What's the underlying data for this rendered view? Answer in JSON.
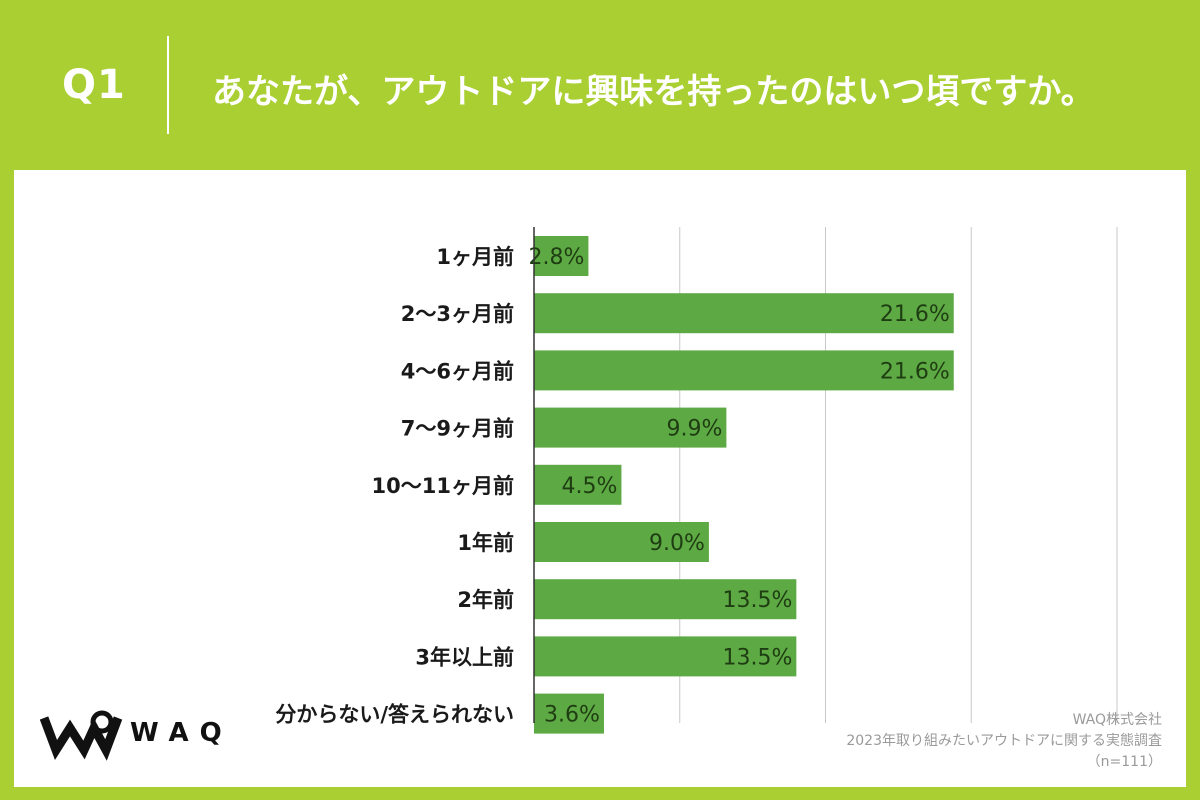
{
  "header": {
    "q_label": "Q1",
    "question": "あなたが、アウトドアに興味を持ったのはいつ頃ですか。"
  },
  "brand": {
    "logo_text": "WAQ"
  },
  "source": {
    "company": "WAQ株式会社",
    "survey": "2023年取り組みたいアウトドアに関する実態調査",
    "sample": "（n=111）"
  },
  "colors": {
    "background": "#a9cf33",
    "bar": "#5da944",
    "gridline": "#c8c8c8"
  },
  "chart_data": {
    "type": "bar",
    "orientation": "horizontal",
    "categories": [
      "1ヶ月前",
      "2〜3ヶ月前",
      "4〜6ヶ月前",
      "7〜9ヶ月前",
      "10〜11ヶ月前",
      "1年前",
      "2年前",
      "3年以上前",
      "分からない/答えられない"
    ],
    "values": [
      2.8,
      21.6,
      21.6,
      9.9,
      4.5,
      9.0,
      13.5,
      13.5,
      3.6
    ],
    "value_labels": [
      "2.8%",
      "21.6%",
      "21.6%",
      "9.9%",
      "4.5%",
      "9.0%",
      "13.5%",
      "13.5%",
      "3.6%"
    ],
    "xlim": [
      0,
      30
    ],
    "grid_step": 7.5,
    "grid": true,
    "legend": "none",
    "title": "",
    "xlabel": "",
    "ylabel": ""
  }
}
